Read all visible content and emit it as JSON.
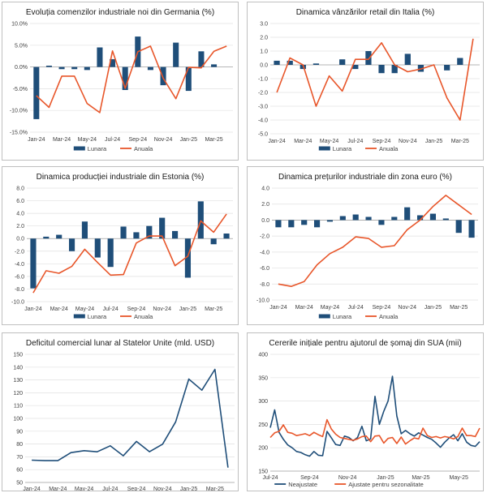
{
  "colors": {
    "bar": "#1f4e79",
    "line": "#e8562a",
    "navy": "#1f4e79",
    "orange": "#e8562a",
    "grid": "#e0e0e0",
    "axis": "#bfbfbf"
  },
  "chart_data": [
    {
      "type": "bar",
      "title": "Evoluția comenzilor industriale noi din Germania (%)",
      "months": [
        "Jan-24",
        "Feb-24",
        "Mar-24",
        "Apr-24",
        "May-24",
        "Jun-24",
        "Jul-24",
        "Aug-24",
        "Sep-24",
        "Oct-24",
        "Nov-24",
        "Dec-24",
        "Jan-25",
        "Feb-25",
        "Mar-25",
        "Apr-25"
      ],
      "x_labels": [
        "Jan-24",
        "Mar-24",
        "May-24",
        "Jul-24",
        "Sep-24",
        "Nov-24",
        "Jan-25",
        "Mar-25"
      ],
      "ylim": [
        -15,
        10
      ],
      "y_ticks": [
        -15,
        -10,
        -5,
        0,
        5,
        10
      ],
      "y_tick_labels": [
        "-15.0%",
        "-10.0%",
        "-5.0%",
        "0.0%",
        "5.0%",
        "10.0%"
      ],
      "series": [
        {
          "name": "Lunara",
          "kind": "bar",
          "values": [
            -12.0,
            0.3,
            -0.5,
            -0.5,
            -0.7,
            4.5,
            1.8,
            -5.3,
            7.0,
            -0.7,
            -4.2,
            5.6,
            -5.5,
            3.6,
            0.6,
            0.0
          ]
        },
        {
          "name": "Anuala",
          "kind": "line",
          "values": [
            -6.6,
            -9.3,
            -2.1,
            -2.1,
            -8.4,
            -10.5,
            3.7,
            -4.9,
            3.5,
            4.8,
            -2.6,
            -7.3,
            -0.1,
            -0.2,
            3.6,
            4.8
          ]
        }
      ]
    },
    {
      "type": "bar",
      "title": "Dinamica vânzărilor retail din Italia (%)",
      "months": [
        "Jan-24",
        "Feb-24",
        "Mar-24",
        "Apr-24",
        "May-24",
        "Jun-24",
        "Jul-24",
        "Aug-24",
        "Sep-24",
        "Oct-24",
        "Nov-24",
        "Dec-24",
        "Jan-25",
        "Feb-25",
        "Mar-25",
        "Apr-25"
      ],
      "x_labels": [
        "Jan-24",
        "Mar-24",
        "May-24",
        "Jul-24",
        "Sep-24",
        "Nov-24",
        "Jan-25",
        "Mar-25"
      ],
      "ylim": [
        -5,
        3
      ],
      "y_ticks": [
        -5,
        -4,
        -3,
        -2,
        -1,
        0,
        1,
        2,
        3
      ],
      "y_tick_labels": [
        "-5.0",
        "-4.0",
        "-3.0",
        "-2.0",
        "-1.0",
        "0.0",
        "1.0",
        "2.0",
        "3.0"
      ],
      "series": [
        {
          "name": "Lunara",
          "kind": "bar",
          "values": [
            0.3,
            0.3,
            -0.3,
            0.1,
            0.0,
            0.4,
            -0.3,
            1.0,
            -0.6,
            -0.6,
            0.8,
            -0.5,
            0.0,
            -0.4,
            0.5,
            0.0
          ]
        },
        {
          "name": "Anuala",
          "kind": "line",
          "values": [
            -2.0,
            0.5,
            0.0,
            -3.0,
            -0.8,
            -1.9,
            0.4,
            0.4,
            1.6,
            0.0,
            -0.5,
            -0.3,
            0.0,
            -2.4,
            -4.0,
            1.9
          ]
        }
      ]
    },
    {
      "type": "bar",
      "title": "Dinamica producției industriale din Estonia (%)",
      "months": [
        "Jan-24",
        "Feb-24",
        "Mar-24",
        "Apr-24",
        "May-24",
        "Jun-24",
        "Jul-24",
        "Aug-24",
        "Sep-24",
        "Oct-24",
        "Nov-24",
        "Dec-24",
        "Jan-25",
        "Feb-25",
        "Mar-25",
        "Apr-25"
      ],
      "x_labels": [
        "Jan-24",
        "Mar-24",
        "May-24",
        "Jul-24",
        "Sep-24",
        "Nov-24",
        "Jan-25",
        "Mar-25"
      ],
      "ylim": [
        -10,
        8
      ],
      "y_ticks": [
        -10,
        -8,
        -6,
        -4,
        -2,
        0,
        2,
        4,
        6,
        8
      ],
      "y_tick_labels": [
        "-10.0",
        "-8.0",
        "-6.0",
        "-4.0",
        "-2.0",
        "0.0",
        "2.0",
        "4.0",
        "6.0",
        "8.0"
      ],
      "series": [
        {
          "name": "Lunara",
          "kind": "bar",
          "values": [
            -7.9,
            0.3,
            0.6,
            -2.0,
            2.7,
            -3.0,
            -4.5,
            1.9,
            1.0,
            2.0,
            3.3,
            1.2,
            -6.2,
            5.9,
            -0.9,
            0.8
          ]
        },
        {
          "name": "Anuala",
          "kind": "line",
          "values": [
            -8.6,
            -5.1,
            -5.5,
            -4.4,
            -1.7,
            -3.8,
            -5.8,
            -5.7,
            -0.7,
            0.4,
            0.4,
            -4.3,
            -2.8,
            2.8,
            1.0,
            3.9
          ]
        }
      ]
    },
    {
      "type": "bar",
      "title": "Dinamica prețurilor industriale din zona euro (%)",
      "months": [
        "Jan-24",
        "Feb-24",
        "Mar-24",
        "Apr-24",
        "May-24",
        "Jun-24",
        "Jul-24",
        "Aug-24",
        "Sep-24",
        "Oct-24",
        "Nov-24",
        "Dec-24",
        "Jan-25",
        "Feb-25",
        "Mar-25",
        "Apr-25"
      ],
      "x_labels": [
        "Jan-24",
        "Mar-24",
        "May-24",
        "Jul-24",
        "Sep-24",
        "Nov-24",
        "Jan-25",
        "Mar-25"
      ],
      "ylim": [
        -10,
        4
      ],
      "y_ticks": [
        -10,
        -8,
        -6,
        -4,
        -2,
        0,
        2,
        4
      ],
      "y_tick_labels": [
        "-10.0",
        "-8.0",
        "-6.0",
        "-4.0",
        "-2.0",
        "0.0",
        "2.0",
        "4.0"
      ],
      "series": [
        {
          "name": "Lunara",
          "kind": "bar",
          "values": [
            -0.9,
            -0.9,
            -0.6,
            -0.9,
            -0.2,
            0.5,
            0.7,
            0.4,
            -0.6,
            0.4,
            1.6,
            0.6,
            0.8,
            0.2,
            -1.6,
            -2.2
          ]
        },
        {
          "name": "Anuala",
          "kind": "line",
          "values": [
            -8.0,
            -8.3,
            -7.7,
            -5.6,
            -4.2,
            -3.4,
            -2.1,
            -2.3,
            -3.4,
            -3.2,
            -1.2,
            0.0,
            1.7,
            3.1,
            1.9,
            0.7
          ]
        }
      ]
    },
    {
      "type": "line",
      "title": "Deficitul comercial lunar al Statelor Unite (mld. USD)",
      "months": [
        "Jan-24",
        "Feb-24",
        "Mar-24",
        "Apr-24",
        "May-24",
        "Jun-24",
        "Jul-24",
        "Aug-24",
        "Sep-24",
        "Oct-24",
        "Nov-24",
        "Dec-24",
        "Jan-25",
        "Feb-25",
        "Mar-25",
        "Apr-25"
      ],
      "x_labels": [
        "Jan-24",
        "Mar-24",
        "May-24",
        "Jul-24",
        "Sep-24",
        "Nov-24",
        "Jan-25",
        "Mar-25"
      ],
      "ylim": [
        50,
        150
      ],
      "y_ticks": [
        50,
        60,
        70,
        80,
        90,
        100,
        110,
        120,
        130,
        140,
        150
      ],
      "y_tick_labels": [
        "50",
        "60",
        "70",
        "80",
        "90",
        "100",
        "110",
        "120",
        "130",
        "140",
        "150"
      ],
      "series": [
        {
          "name": "Deficit",
          "kind": "line",
          "values": [
            67.4,
            67.0,
            67.0,
            73.3,
            74.8,
            73.9,
            78.6,
            70.8,
            82.0,
            74.0,
            79.9,
            97.3,
            130.7,
            122.0,
            138.3,
            61.6
          ]
        }
      ]
    },
    {
      "type": "line",
      "title": "Cererile inițiale pentru ajutorul de șomaj din SUA (mii)",
      "x_labels": [
        "Jul-24",
        "Sep-24",
        "Nov-24",
        "Jan-25",
        "Mar-25",
        "May-25"
      ],
      "x_range": [
        0,
        48
      ],
      "x_label_pos": [
        0,
        9,
        17.7,
        26.4,
        34.5,
        43.2
      ],
      "ylim": [
        150,
        400
      ],
      "y_ticks": [
        150,
        200,
        250,
        300,
        350,
        400
      ],
      "y_tick_labels": [
        "150",
        "200",
        "250",
        "300",
        "350",
        "400"
      ],
      "series": [
        {
          "name": "Neajustate",
          "kind": "line",
          "x": [
            0,
            1,
            2,
            3,
            4,
            5,
            6,
            7,
            8,
            9,
            10,
            11,
            12,
            13,
            14,
            15,
            16,
            17,
            18,
            19,
            20,
            21,
            22,
            23,
            24,
            25,
            26,
            27,
            28,
            29,
            30,
            31,
            32,
            33,
            34,
            35,
            36,
            37,
            38,
            39,
            40,
            41,
            42,
            43,
            44,
            45,
            46,
            47,
            48
          ],
          "values": [
            243,
            281,
            233,
            218,
            206,
            200,
            192,
            190,
            185,
            182,
            192,
            184,
            183,
            235,
            221,
            207,
            205,
            225,
            222,
            215,
            222,
            246,
            215,
            219,
            310,
            250,
            278,
            300,
            353,
            268,
            230,
            237,
            230,
            225,
            232,
            227,
            222,
            218,
            210,
            201,
            212,
            221,
            228,
            215,
            230,
            212,
            205,
            203,
            213
          ]
        },
        {
          "name": "Ajustate pentru sezonalitate",
          "kind": "line",
          "x": [
            0,
            1,
            2,
            3,
            4,
            5,
            6,
            7,
            8,
            9,
            10,
            11,
            12,
            13,
            14,
            15,
            16,
            17,
            18,
            19,
            20,
            21,
            22,
            23,
            24,
            25,
            26,
            27,
            28,
            29,
            30,
            31,
            32,
            33,
            34,
            35,
            36,
            37,
            38,
            39,
            40,
            41,
            42,
            43,
            44,
            45,
            46,
            47,
            48
          ],
          "values": [
            222,
            232,
            235,
            249,
            233,
            231,
            226,
            228,
            230,
            226,
            233,
            228,
            224,
            260,
            240,
            229,
            222,
            220,
            218,
            216,
            219,
            224,
            225,
            213,
            225,
            226,
            210,
            220,
            222,
            209,
            223,
            208,
            215,
            221,
            219,
            242,
            226,
            222,
            224,
            221,
            224,
            222,
            219,
            224,
            242,
            226,
            226,
            224,
            242
          ]
        }
      ]
    }
  ]
}
